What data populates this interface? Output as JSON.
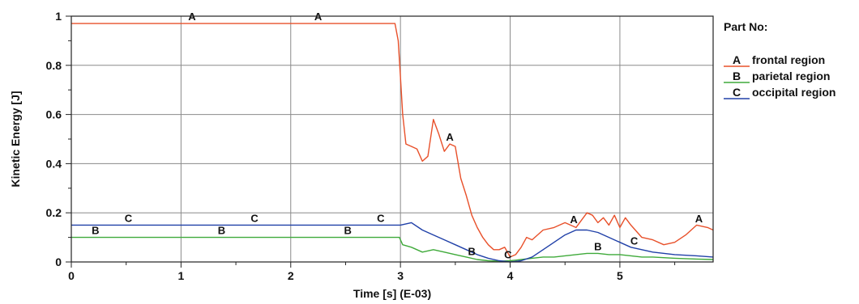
{
  "chart_data": {
    "type": "line",
    "xlabel": "Time [s] (E-03)",
    "ylabel": "Kinetic Energy [J]",
    "xlim": [
      0,
      5.85
    ],
    "ylim": [
      0,
      1
    ],
    "x_ticks": [
      "0",
      "1",
      "2",
      "3",
      "4",
      "5"
    ],
    "y_ticks": [
      "0",
      "0.2",
      "0.4",
      "0.6",
      "0.8",
      "1"
    ],
    "grid": true,
    "legend_title": "Part No:",
    "legend_position": "right",
    "series": [
      {
        "name": "frontal region",
        "letter": "A",
        "color": "#e8502a",
        "points": [
          [
            0,
            0.97
          ],
          [
            1,
            0.97
          ],
          [
            2,
            0.97
          ],
          [
            2.95,
            0.97
          ],
          [
            2.98,
            0.9
          ],
          [
            3.0,
            0.75
          ],
          [
            3.02,
            0.6
          ],
          [
            3.05,
            0.48
          ],
          [
            3.1,
            0.47
          ],
          [
            3.15,
            0.46
          ],
          [
            3.2,
            0.41
          ],
          [
            3.25,
            0.43
          ],
          [
            3.3,
            0.58
          ],
          [
            3.35,
            0.52
          ],
          [
            3.4,
            0.45
          ],
          [
            3.45,
            0.48
          ],
          [
            3.5,
            0.47
          ],
          [
            3.55,
            0.34
          ],
          [
            3.6,
            0.27
          ],
          [
            3.65,
            0.19
          ],
          [
            3.7,
            0.14
          ],
          [
            3.75,
            0.1
          ],
          [
            3.8,
            0.07
          ],
          [
            3.85,
            0.05
          ],
          [
            3.9,
            0.05
          ],
          [
            3.95,
            0.06
          ],
          [
            4.0,
            0.02
          ],
          [
            4.05,
            0.03
          ],
          [
            4.1,
            0.06
          ],
          [
            4.15,
            0.1
          ],
          [
            4.2,
            0.09
          ],
          [
            4.3,
            0.13
          ],
          [
            4.4,
            0.14
          ],
          [
            4.5,
            0.16
          ],
          [
            4.6,
            0.14
          ],
          [
            4.7,
            0.2
          ],
          [
            4.75,
            0.19
          ],
          [
            4.8,
            0.16
          ],
          [
            4.85,
            0.18
          ],
          [
            4.9,
            0.15
          ],
          [
            4.95,
            0.19
          ],
          [
            5.0,
            0.14
          ],
          [
            5.05,
            0.18
          ],
          [
            5.1,
            0.15
          ],
          [
            5.2,
            0.1
          ],
          [
            5.3,
            0.09
          ],
          [
            5.4,
            0.07
          ],
          [
            5.5,
            0.08
          ],
          [
            5.6,
            0.11
          ],
          [
            5.7,
            0.15
          ],
          [
            5.8,
            0.14
          ],
          [
            5.85,
            0.13
          ]
        ],
        "marker_x": [
          1.1,
          2.25,
          3.45,
          4.58,
          5.72
        ]
      },
      {
        "name": "parietal region",
        "letter": "B",
        "color": "#3faa3a",
        "points": [
          [
            0,
            0.1
          ],
          [
            1,
            0.1
          ],
          [
            2,
            0.1
          ],
          [
            2.99,
            0.1
          ],
          [
            3.02,
            0.07
          ],
          [
            3.1,
            0.06
          ],
          [
            3.2,
            0.04
          ],
          [
            3.3,
            0.05
          ],
          [
            3.4,
            0.04
          ],
          [
            3.5,
            0.03
          ],
          [
            3.6,
            0.02
          ],
          [
            3.7,
            0.01
          ],
          [
            3.8,
            0.005
          ],
          [
            3.9,
            0.003
          ],
          [
            4.0,
            0.005
          ],
          [
            4.1,
            0.01
          ],
          [
            4.2,
            0.015
          ],
          [
            4.3,
            0.02
          ],
          [
            4.4,
            0.02
          ],
          [
            4.5,
            0.025
          ],
          [
            4.6,
            0.03
          ],
          [
            4.7,
            0.035
          ],
          [
            4.8,
            0.035
          ],
          [
            4.9,
            0.03
          ],
          [
            5.0,
            0.03
          ],
          [
            5.1,
            0.025
          ],
          [
            5.2,
            0.02
          ],
          [
            5.3,
            0.02
          ],
          [
            5.5,
            0.015
          ],
          [
            5.7,
            0.012
          ],
          [
            5.85,
            0.01
          ]
        ],
        "marker_x": [
          0.22,
          1.37,
          2.52,
          3.65,
          4.8
        ]
      },
      {
        "name": "occipital region",
        "letter": "C",
        "color": "#2040a8",
        "points": [
          [
            0,
            0.15
          ],
          [
            1,
            0.15
          ],
          [
            2,
            0.15
          ],
          [
            3.0,
            0.15
          ],
          [
            3.1,
            0.16
          ],
          [
            3.2,
            0.13
          ],
          [
            3.3,
            0.11
          ],
          [
            3.4,
            0.09
          ],
          [
            3.5,
            0.07
          ],
          [
            3.6,
            0.05
          ],
          [
            3.7,
            0.03
          ],
          [
            3.8,
            0.015
          ],
          [
            3.9,
            0.005
          ],
          [
            4.0,
            0.0
          ],
          [
            4.1,
            0.005
          ],
          [
            4.2,
            0.02
          ],
          [
            4.3,
            0.05
          ],
          [
            4.4,
            0.08
          ],
          [
            4.5,
            0.11
          ],
          [
            4.6,
            0.13
          ],
          [
            4.7,
            0.13
          ],
          [
            4.8,
            0.12
          ],
          [
            4.9,
            0.1
          ],
          [
            5.0,
            0.08
          ],
          [
            5.1,
            0.06
          ],
          [
            5.2,
            0.05
          ],
          [
            5.3,
            0.04
          ],
          [
            5.5,
            0.03
          ],
          [
            5.7,
            0.025
          ],
          [
            5.85,
            0.02
          ]
        ],
        "marker_x": [
          0.52,
          1.67,
          2.82,
          3.98,
          5.13
        ]
      }
    ]
  }
}
